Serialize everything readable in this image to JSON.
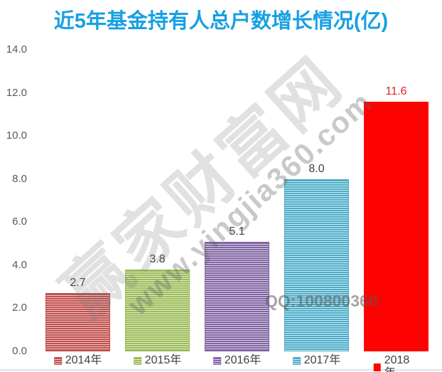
{
  "title": "近5年基金持有人总户数增长情况(亿)",
  "colors": {
    "title": "#17a0e3",
    "axis_label": "#595959",
    "value_label": "#3f3f3f",
    "value_label_2018": "#df2424",
    "legend_label": "#404040",
    "bottom_rule": "#e0e4e9"
  },
  "watermark": {
    "brand": "赢家财富网",
    "url": "www.yingjia360.com",
    "qq": "QQ:100800360",
    "brand_color": "rgba(120,120,120,0.22)",
    "url_color": "rgba(100,100,100,0.35)",
    "qq_color": "rgba(90,90,90,0.55)"
  },
  "chart_data": {
    "type": "bar",
    "title": "近5年基金持有人总户数增长情况(亿)",
    "categories": [
      "2014年",
      "2015年",
      "2016年",
      "2017年",
      "2018年"
    ],
    "values": [
      2.7,
      3.8,
      5.1,
      8.0,
      11.6
    ],
    "value_labels": [
      "2.7",
      "3.8",
      "5.1",
      "8.0",
      "11.6"
    ],
    "xlabel": "",
    "ylabel": "",
    "ylim": [
      0,
      14
    ],
    "ytick_labels": [
      "14.0",
      "12.0",
      "10.0",
      "8.0",
      "6.0",
      "4.0",
      "2.0",
      "0.0"
    ],
    "ytick_values": [
      14,
      12,
      10,
      8,
      6,
      4,
      2,
      0
    ],
    "grid": false,
    "legend_position": "bottom",
    "series_styles": [
      {
        "name": "2014年",
        "fill": "striped",
        "dark": "#c0504d",
        "light": "#eecac9",
        "label_color": "#3f3f3f"
      },
      {
        "name": "2015年",
        "fill": "striped",
        "dark": "#9bbb59",
        "light": "#e4edcb",
        "label_color": "#3f3f3f"
      },
      {
        "name": "2016年",
        "fill": "striped",
        "dark": "#8064a2",
        "light": "#ddd4e8",
        "label_color": "#3f3f3f"
      },
      {
        "name": "2017年",
        "fill": "striped",
        "dark": "#4bacc6",
        "light": "#d3ecf4",
        "label_color": "#3f3f3f"
      },
      {
        "name": "2018年",
        "fill": "solid",
        "dark": "#fe0202",
        "light": "#fe0202",
        "label_color": "#df2424"
      }
    ]
  }
}
